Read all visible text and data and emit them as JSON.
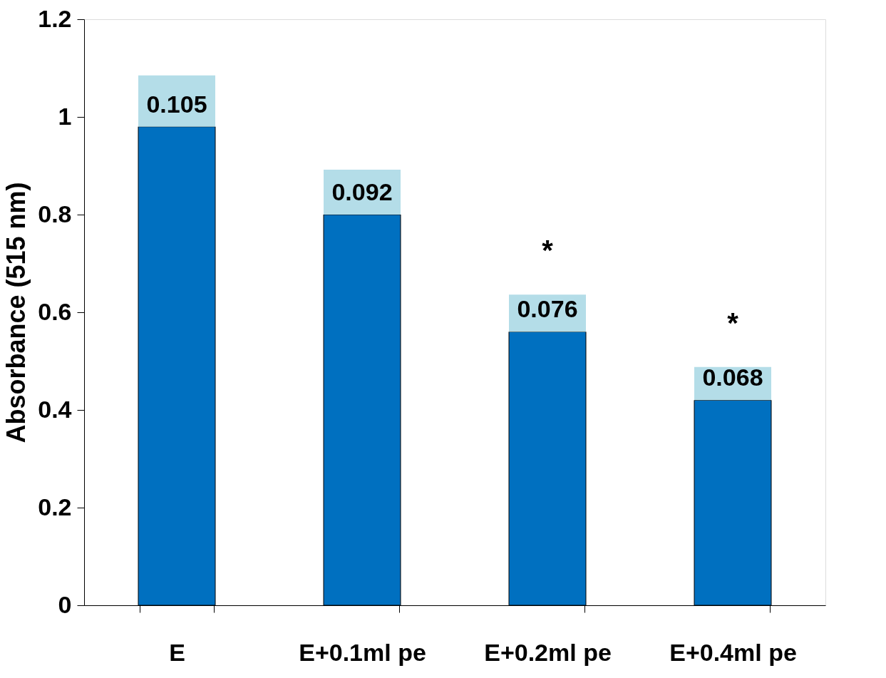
{
  "chart_data": {
    "type": "bar",
    "ylabel": "Absorbance (515 nm)",
    "stacked": true,
    "categories": [
      "E",
      "E+0.1ml pe",
      "E+0.2ml pe",
      "E+0.4ml pe"
    ],
    "series": [
      {
        "color": "#0070c0",
        "values": [
          0.98,
          0.8,
          0.56,
          0.42
        ]
      },
      {
        "color": "#b4dde8",
        "values": [
          0.105,
          0.092,
          0.076,
          0.068
        ],
        "value_labels": [
          "0.105",
          "0.092",
          "0.076",
          "0.068"
        ]
      }
    ],
    "ylim": [
      0,
      1.2
    ],
    "yticks": [
      0,
      0.2,
      0.4,
      0.6,
      0.8,
      1,
      1.2
    ],
    "annotations": [
      "*",
      "*"
    ],
    "grid": false
  }
}
